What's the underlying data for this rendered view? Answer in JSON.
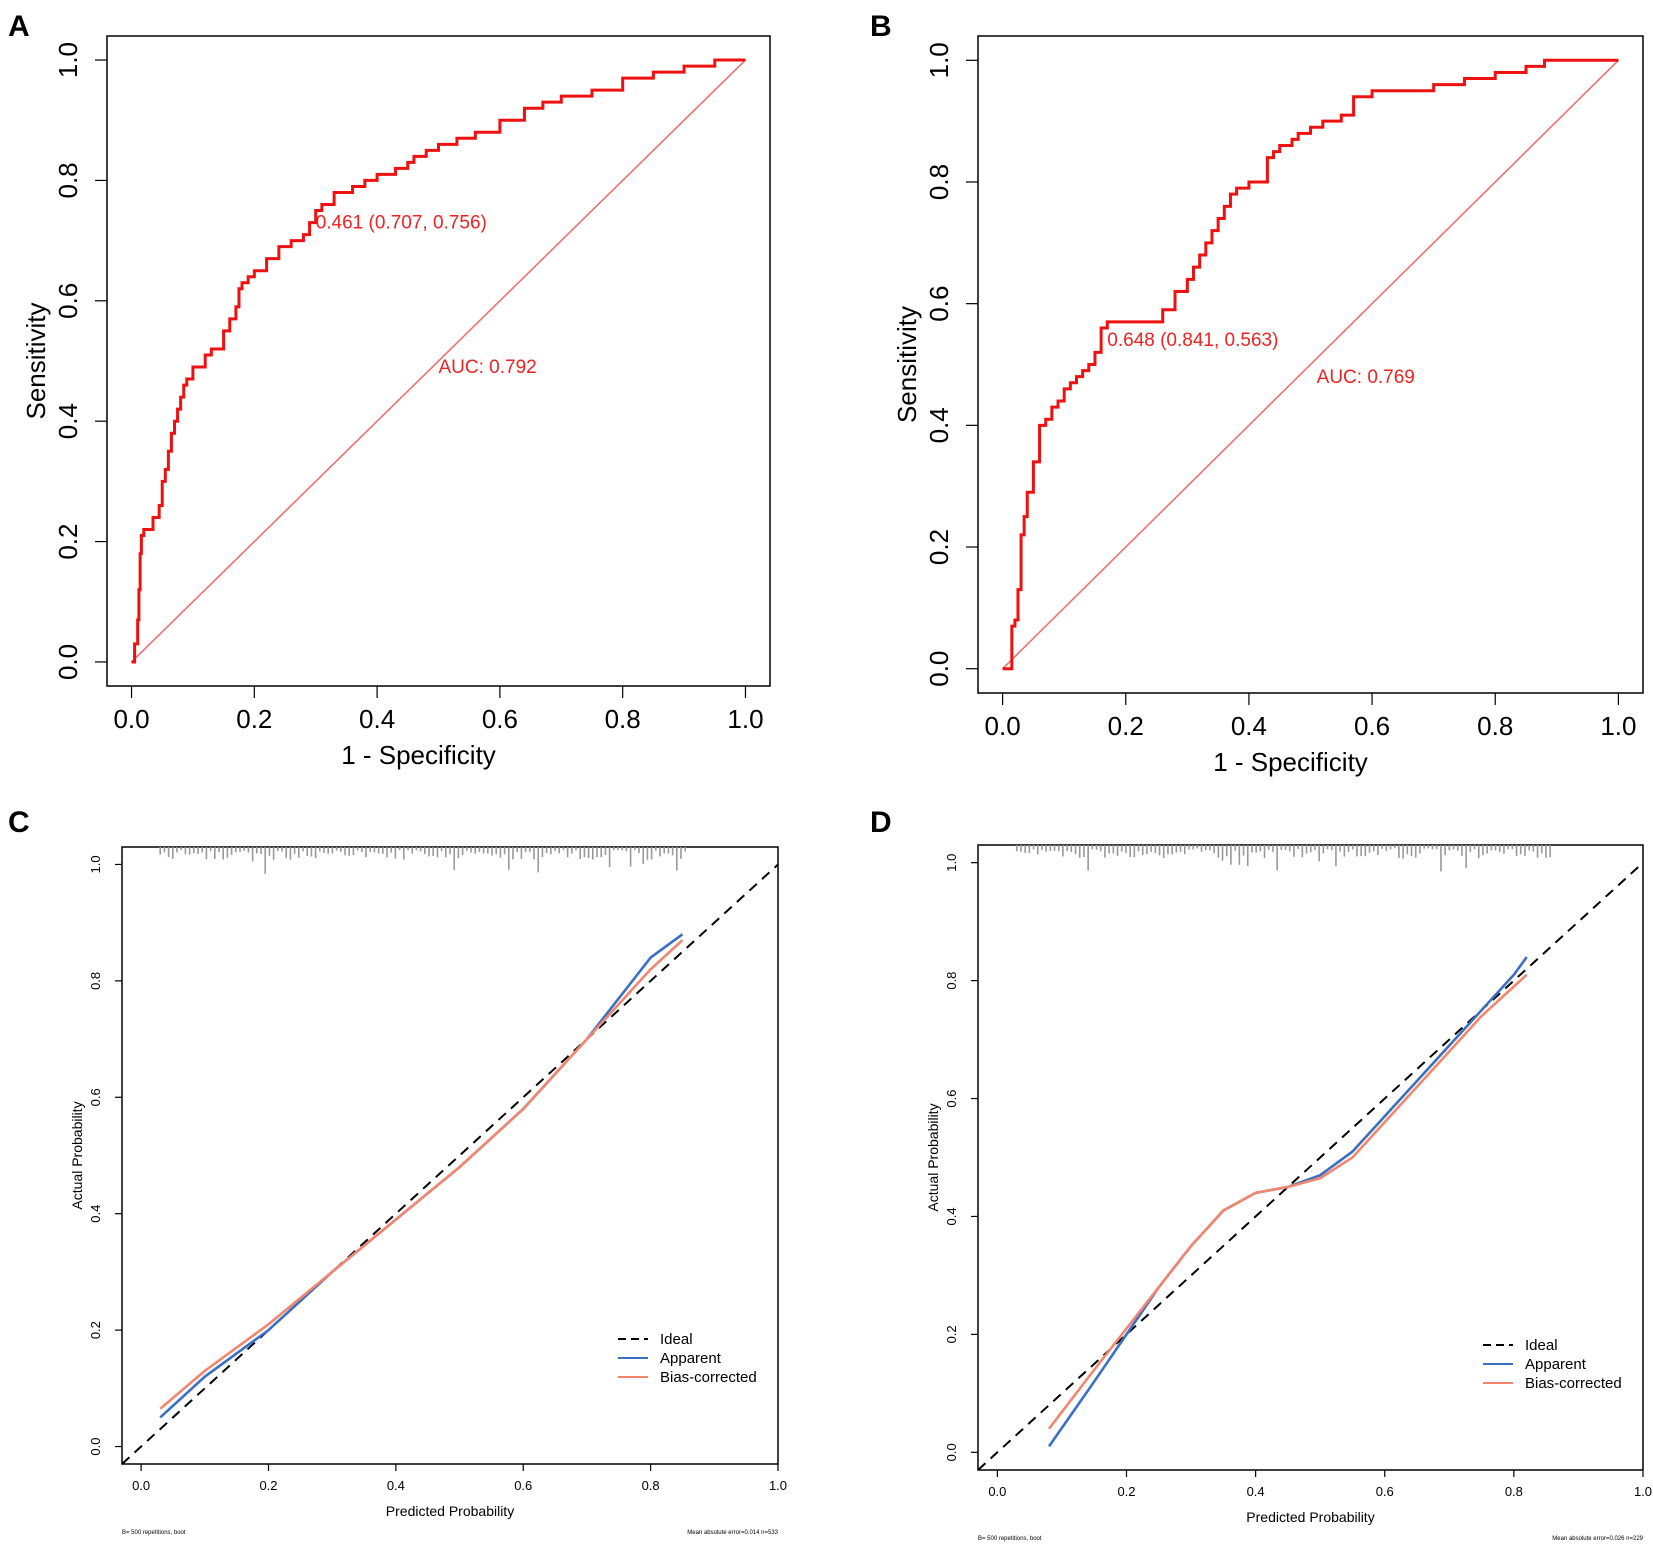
{
  "chart_data": [
    {
      "panel": "A",
      "type": "line",
      "subtype": "roc",
      "xlabel": "1 - Specificity",
      "ylabel": "Sensitivity",
      "xlim": [
        0,
        1
      ],
      "ylim": [
        0,
        1
      ],
      "xticks": [
        "0.0",
        "0.2",
        "0.4",
        "0.6",
        "0.8",
        "1.0"
      ],
      "yticks": [
        "0.0",
        "0.2",
        "0.4",
        "0.6",
        "0.8",
        "1.0"
      ],
      "curve_color": "#ee1111",
      "diagonal_color": "#f07070",
      "series": [
        {
          "name": "ROC",
          "x": [
            0.0,
            0.005,
            0.01,
            0.012,
            0.014,
            0.016,
            0.02,
            0.035,
            0.045,
            0.05,
            0.055,
            0.06,
            0.065,
            0.07,
            0.075,
            0.08,
            0.085,
            0.09,
            0.1,
            0.12,
            0.13,
            0.15,
            0.16,
            0.17,
            0.175,
            0.18,
            0.19,
            0.2,
            0.22,
            0.24,
            0.26,
            0.28,
            0.29,
            0.3,
            0.31,
            0.33,
            0.36,
            0.38,
            0.4,
            0.43,
            0.45,
            0.46,
            0.48,
            0.5,
            0.53,
            0.56,
            0.6,
            0.64,
            0.67,
            0.7,
            0.75,
            0.8,
            0.85,
            0.9,
            0.95,
            1.0
          ],
          "y": [
            0.0,
            0.03,
            0.07,
            0.12,
            0.18,
            0.21,
            0.22,
            0.24,
            0.26,
            0.3,
            0.32,
            0.35,
            0.38,
            0.4,
            0.42,
            0.44,
            0.46,
            0.47,
            0.49,
            0.51,
            0.52,
            0.55,
            0.57,
            0.59,
            0.62,
            0.63,
            0.64,
            0.65,
            0.67,
            0.69,
            0.7,
            0.71,
            0.73,
            0.75,
            0.76,
            0.78,
            0.79,
            0.8,
            0.81,
            0.82,
            0.83,
            0.84,
            0.85,
            0.86,
            0.87,
            0.88,
            0.9,
            0.92,
            0.93,
            0.94,
            0.95,
            0.97,
            0.98,
            0.99,
            1.0,
            1.0
          ]
        }
      ],
      "annotations": [
        {
          "text": "0.461 (0.707, 0.756)",
          "x": 0.3,
          "y": 0.72
        },
        {
          "text": "AUC: 0.792",
          "x": 0.5,
          "y": 0.48
        }
      ]
    },
    {
      "panel": "B",
      "type": "line",
      "subtype": "roc",
      "xlabel": "1 - Specificity",
      "ylabel": "Sensitivity",
      "xlim": [
        0,
        1
      ],
      "ylim": [
        0,
        1
      ],
      "xticks": [
        "0.0",
        "0.2",
        "0.4",
        "0.6",
        "0.8",
        "1.0"
      ],
      "yticks": [
        "0.0",
        "0.2",
        "0.4",
        "0.6",
        "0.8",
        "1.0"
      ],
      "curve_color": "#ee1111",
      "diagonal_color": "#f07070",
      "series": [
        {
          "name": "ROC",
          "x": [
            0.0,
            0.01,
            0.015,
            0.02,
            0.025,
            0.03,
            0.035,
            0.04,
            0.05,
            0.06,
            0.07,
            0.08,
            0.09,
            0.1,
            0.11,
            0.12,
            0.13,
            0.14,
            0.15,
            0.16,
            0.17,
            0.2,
            0.24,
            0.26,
            0.28,
            0.3,
            0.31,
            0.32,
            0.33,
            0.34,
            0.35,
            0.36,
            0.37,
            0.38,
            0.4,
            0.43,
            0.44,
            0.45,
            0.47,
            0.48,
            0.5,
            0.52,
            0.55,
            0.57,
            0.58,
            0.6,
            0.63,
            0.66,
            0.7,
            0.75,
            0.8,
            0.85,
            0.88,
            0.9,
            0.95,
            1.0
          ],
          "y": [
            0.0,
            0.0,
            0.07,
            0.08,
            0.13,
            0.22,
            0.25,
            0.29,
            0.34,
            0.4,
            0.41,
            0.43,
            0.44,
            0.46,
            0.47,
            0.48,
            0.49,
            0.5,
            0.52,
            0.56,
            0.57,
            0.57,
            0.57,
            0.59,
            0.62,
            0.64,
            0.66,
            0.68,
            0.7,
            0.72,
            0.74,
            0.76,
            0.78,
            0.79,
            0.8,
            0.84,
            0.85,
            0.86,
            0.87,
            0.88,
            0.89,
            0.9,
            0.91,
            0.94,
            0.94,
            0.95,
            0.95,
            0.95,
            0.96,
            0.97,
            0.98,
            0.99,
            1.0,
            1.0,
            1.0,
            1.0
          ]
        }
      ],
      "annotations": [
        {
          "text": "0.648 (0.841, 0.563)",
          "x": 0.17,
          "y": 0.53
        },
        {
          "text": "AUC: 0.769",
          "x": 0.51,
          "y": 0.47
        }
      ]
    },
    {
      "panel": "C",
      "type": "line",
      "subtype": "calibration",
      "xlabel": "Predicted Probability",
      "ylabel": "Actual Probability",
      "xlim": [
        -0.03,
        1.0
      ],
      "ylim": [
        -0.03,
        1.03
      ],
      "xticks": [
        "0.0",
        "0.2",
        "0.4",
        "0.6",
        "0.8",
        "1.0"
      ],
      "yticks": [
        "0.0",
        "0.2",
        "0.4",
        "0.6",
        "0.8",
        "1.0"
      ],
      "series": [
        {
          "name": "Ideal",
          "color": "#000000",
          "dash": true,
          "x": [
            -0.03,
            1.0
          ],
          "y": [
            -0.03,
            1.0
          ]
        },
        {
          "name": "Apparent",
          "color": "#3a6fc4",
          "x": [
            0.03,
            0.1,
            0.2,
            0.3,
            0.4,
            0.5,
            0.6,
            0.7,
            0.8,
            0.85
          ],
          "y": [
            0.05,
            0.12,
            0.2,
            0.3,
            0.39,
            0.48,
            0.58,
            0.7,
            0.84,
            0.88
          ]
        },
        {
          "name": "Bias-corrected",
          "color": "#f2866f",
          "x": [
            0.03,
            0.1,
            0.2,
            0.3,
            0.4,
            0.5,
            0.6,
            0.7,
            0.8,
            0.85
          ],
          "y": [
            0.065,
            0.13,
            0.21,
            0.3,
            0.39,
            0.48,
            0.58,
            0.7,
            0.82,
            0.87
          ]
        }
      ],
      "legend": [
        "Ideal",
        "Apparent",
        "Bias-corrected"
      ],
      "legend_position": "bottom-right",
      "footer_left": "B= 500 repetitions, boot",
      "footer_right": "Mean absolute error=0.014 n=533"
    },
    {
      "panel": "D",
      "type": "line",
      "subtype": "calibration",
      "xlabel": "Predicted Probability",
      "ylabel": "Actual Probability",
      "xlim": [
        -0.03,
        1.0
      ],
      "ylim": [
        -0.03,
        1.03
      ],
      "xticks": [
        "0.0",
        "0.2",
        "0.4",
        "0.6",
        "0.8",
        "1.0"
      ],
      "yticks": [
        "0.0",
        "0.2",
        "0.4",
        "0.6",
        "0.8",
        "1.0"
      ],
      "series": [
        {
          "name": "Ideal",
          "color": "#000000",
          "dash": true,
          "x": [
            -0.03,
            1.0
          ],
          "y": [
            -0.03,
            1.0
          ]
        },
        {
          "name": "Apparent",
          "color": "#3a6fc4",
          "x": [
            0.08,
            0.15,
            0.2,
            0.25,
            0.3,
            0.35,
            0.4,
            0.45,
            0.5,
            0.55,
            0.6,
            0.65,
            0.7,
            0.75,
            0.8,
            0.82
          ],
          "y": [
            0.01,
            0.12,
            0.2,
            0.28,
            0.35,
            0.41,
            0.44,
            0.45,
            0.47,
            0.51,
            0.57,
            0.63,
            0.69,
            0.75,
            0.81,
            0.84
          ]
        },
        {
          "name": "Bias-corrected",
          "color": "#f2866f",
          "x": [
            0.08,
            0.15,
            0.2,
            0.25,
            0.3,
            0.35,
            0.4,
            0.45,
            0.5,
            0.55,
            0.6,
            0.65,
            0.7,
            0.75,
            0.8,
            0.82
          ],
          "y": [
            0.04,
            0.14,
            0.21,
            0.28,
            0.35,
            0.41,
            0.44,
            0.45,
            0.465,
            0.5,
            0.56,
            0.62,
            0.68,
            0.74,
            0.79,
            0.81
          ]
        }
      ],
      "legend": [
        "Ideal",
        "Apparent",
        "Bias-corrected"
      ],
      "legend_position": "bottom-right",
      "footer_left": "B= 500 repetitions, boot",
      "footer_right": "Mean absolute error=0.026 n=229"
    }
  ],
  "panel_labels": [
    "A",
    "B",
    "C",
    "D"
  ]
}
